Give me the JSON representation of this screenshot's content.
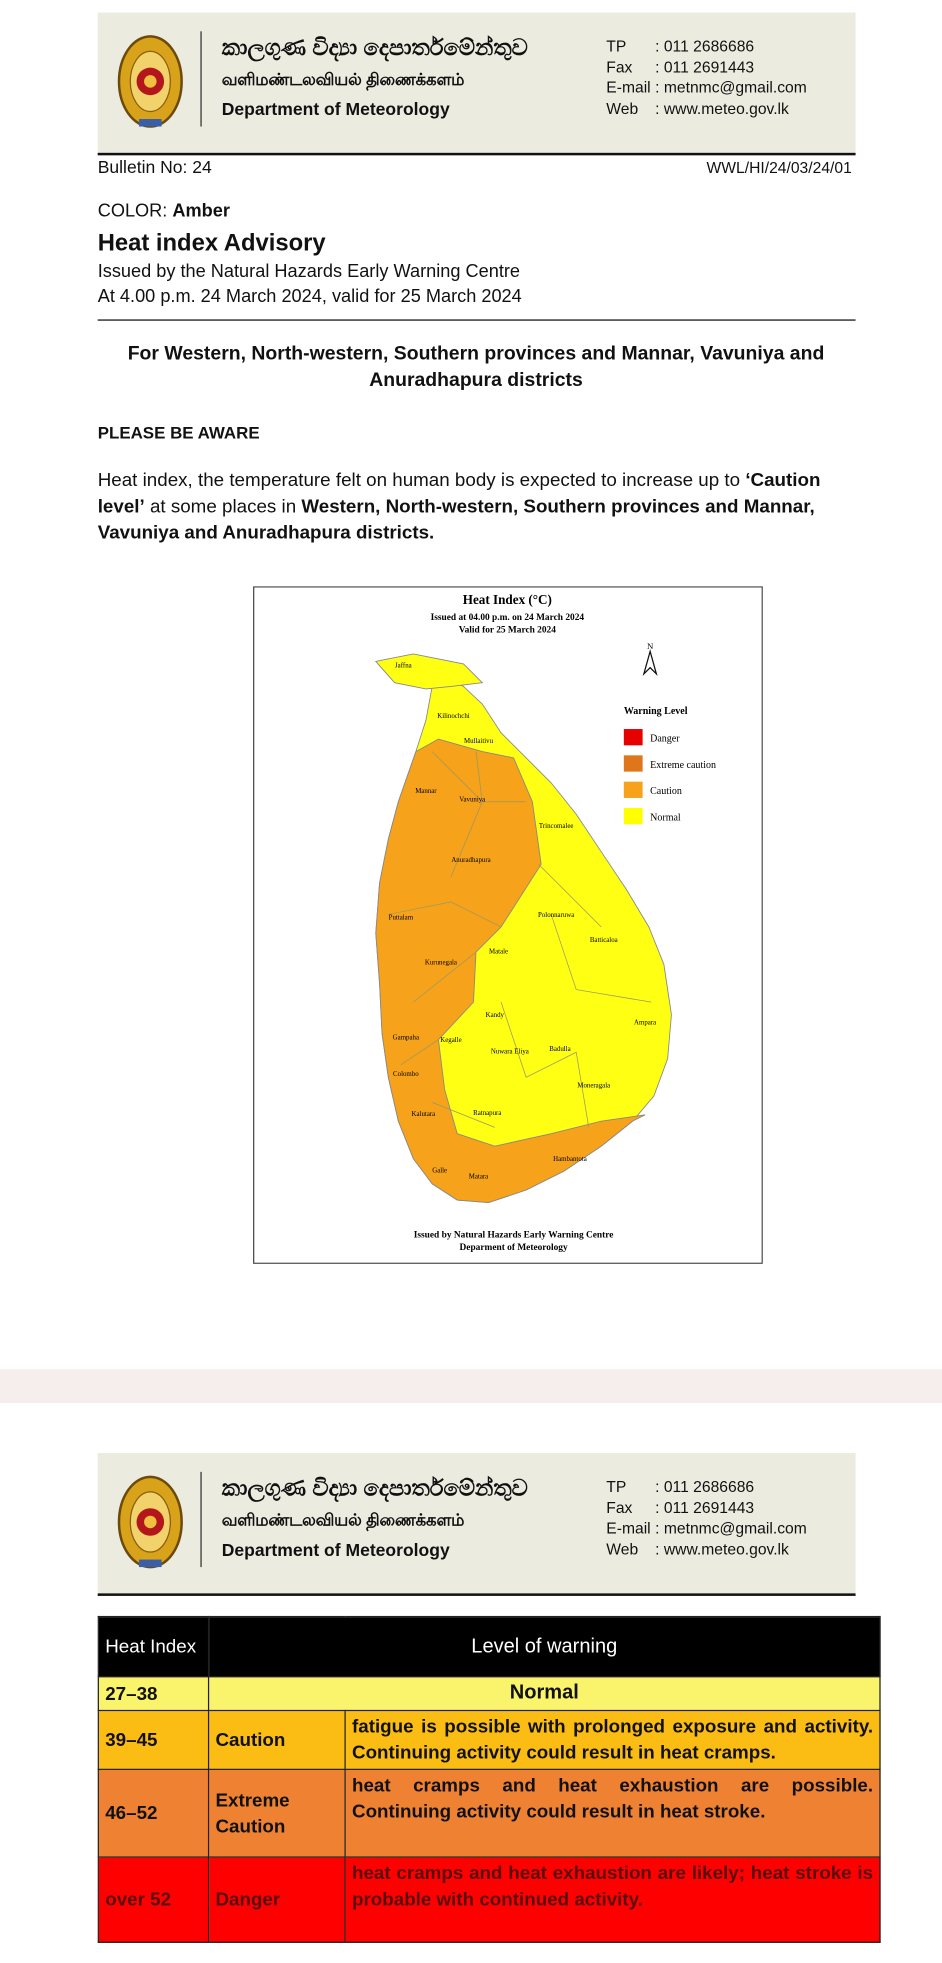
{
  "pages": [
    {
      "header": {
        "sinhala": "කාලගුණ විද්‍යා දෙපාර්තමේන්තුව",
        "tamil": "வளிமண்டலவியல் திணைக்களம்",
        "english": "Department of Meteorology",
        "contacts": [
          [
            "TP",
            ": 011 2686686"
          ],
          [
            "Fax",
            ": 011 2691443"
          ],
          [
            "E-mail",
            ": metnmc@gmail.com"
          ],
          [
            "Web",
            ": www.meteo.gov.lk"
          ]
        ]
      },
      "bulletin_no": "Bulletin No: 24",
      "reference": "WWL/HI/24/03/24/01",
      "color_label": "COLOR:",
      "color_value": "Amber",
      "title": "Heat index Advisory",
      "issued_by": "Issued by the Natural Hazards Early Warning Centre",
      "issued_at": "At 4.00 p.m. 24 March 2024, valid for 25 March 2024",
      "regions_heading": "For Western, North-western, Southern provinces and Mannar, Vavuniya and Anuradhapura districts",
      "aware_heading": "PLEASE BE AWARE",
      "body": [
        {
          "text": "Heat index, the temperature felt on human body is expected to increase up to ",
          "bold": false
        },
        {
          "text": "‘Caution level’",
          "bold": true
        },
        {
          "text": " at some places in ",
          "bold": false
        },
        {
          "text": "Western, North-western, Southern provinces and Mannar, Vavuniya and Anuradhapura districts.",
          "bold": true
        }
      ],
      "map": {
        "title": "Heat Index (°C)",
        "issued": "Issued at 04.00 p.m. on 24 March 2024",
        "valid": "Valid for  25 March 2024",
        "north": "N",
        "legend_title": "Warning Level",
        "legend": [
          {
            "label": "Danger",
            "color": "#e60000"
          },
          {
            "label": "Extreme caution",
            "color": "#e0761c"
          },
          {
            "label": "Caution",
            "color": "#f6a21a"
          },
          {
            "label": "Normal",
            "color": "#ffff00"
          }
        ],
        "districts": [
          "Jaffna",
          "Kilinochchi",
          "Mullaitivu",
          "Mannar",
          "Vavuniya",
          "Trincomalee",
          "Anuradhapura",
          "Puttalam",
          "Polonnaruwa",
          "Batticaloa",
          "Matale",
          "Kurunegala",
          "Kandy",
          "Ampara",
          "Kegalle",
          "Nuwara Eliya",
          "Badulla",
          "Gampaha",
          "Colombo",
          "Moneragala",
          "Kalutara",
          "Ratnapura",
          "Hambantota",
          "Galle",
          "Matara"
        ],
        "footer": [
          "Issued by Natural Hazards Early Warning Centre",
          "Deparment of Meteorology"
        ]
      }
    },
    {
      "header": {
        "sinhala": "කාලගුණ විද්‍යා දෙපාර්තමේන්තුව",
        "tamil": "வளிமண்டலவியல் திணைக்களம்",
        "english": "Department of Meteorology",
        "contacts": [
          [
            "TP",
            ": 011 2686686"
          ],
          [
            "Fax",
            ": 011 2691443"
          ],
          [
            "E-mail",
            ": metnmc@gmail.com"
          ],
          [
            "Web",
            ": www.meteo.gov.lk"
          ]
        ]
      },
      "table": {
        "header": [
          "Heat Index",
          "Level of warning"
        ],
        "rows": [
          {
            "cells": [
              "27–38",
              "Normal"
            ],
            "color": "#f9f46c",
            "text_color": "#111111"
          },
          {
            "cells": [
              "39–45",
              "Caution",
              "fatigue is possible with prolonged exposure and activity. Continuing activity could result in heat cramps."
            ],
            "color": "#fbbd14",
            "text_color": "#111111"
          },
          {
            "cells": [
              "46–52",
              "Extreme Caution",
              "heat cramps and heat exhaustion are possible. Continuing activity could result in heat stroke."
            ],
            "color": "#ee8232",
            "text_color": "#111111"
          },
          {
            "cells": [
              "over 52",
              "Danger",
              "heat cramps and heat exhaustion are likely; heat stroke is probable with continued activity."
            ],
            "color": "#fe0000",
            "text_color": "#5a0d0d"
          }
        ]
      }
    }
  ]
}
